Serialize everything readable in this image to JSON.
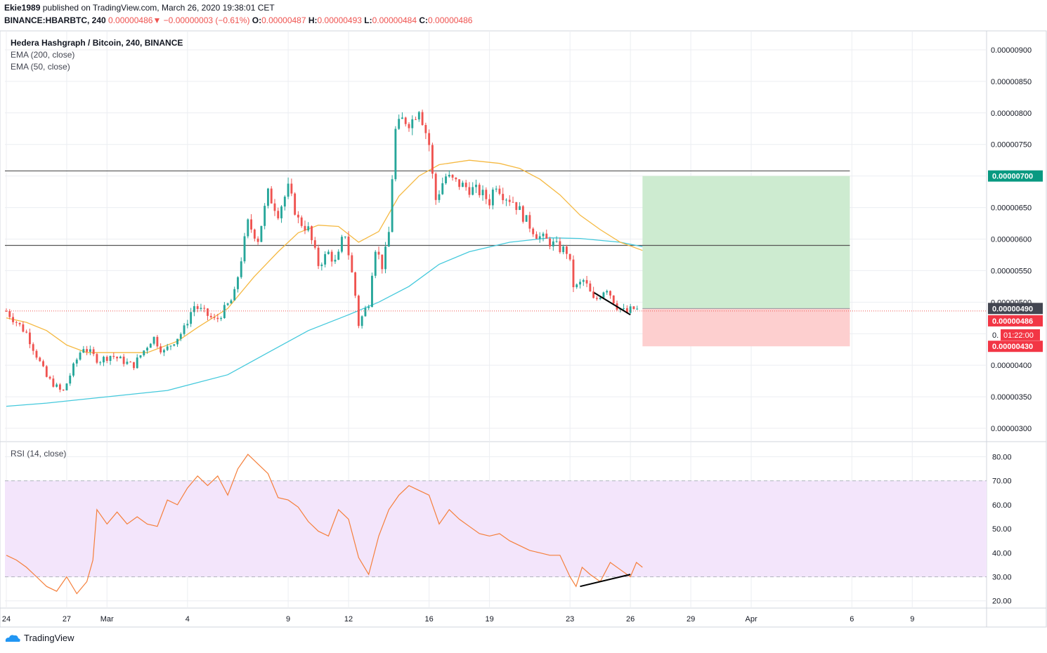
{
  "header": {
    "publisher": "Ekie1989",
    "published_text": "published on TradingView.com, March 26, 2020 19:38:01 CET",
    "symbol": "BINANCE:HBARBTC, 240",
    "last": "0.00000486",
    "change_arrow": "▼",
    "change": "−0.00000003 (−0.61%)",
    "o_label": "O:",
    "o_value": "0.00000487",
    "h_label": "H:",
    "h_value": "0.00000493",
    "l_label": "L:",
    "l_value": "0.00000484",
    "c_label": "C:",
    "c_value": "0.00000486"
  },
  "legend": {
    "title": "Hedera Hashgraph / Bitcoin, 240, BINANCE",
    "ema200": "EMA (200, close)",
    "ema50": "EMA (50, close)",
    "rsi": "RSI (14, close)"
  },
  "footer": {
    "brand": "TradingView"
  },
  "colors": {
    "up": "#26a69a",
    "down": "#ef5350",
    "ema50": "#f5b942",
    "ema200": "#44c9dc",
    "rsi_line": "#f57f3b",
    "rsi_band": "#f3e5fb",
    "profit_zone": "#cdebd0",
    "loss_zone": "#fdcfcf",
    "grid": "#eceef2",
    "resistance": "#555555"
  },
  "chart_data": [
    {
      "type": "candlestick",
      "title": "Hedera Hashgraph / Bitcoin, 240, BINANCE",
      "y_range": [
        2.8e-06,
        9.3e-06
      ],
      "y_ticks": [
        "0.00000300",
        "0.00000350",
        "0.00000400",
        "0.00000450",
        "0.00000500",
        "0.00000550",
        "0.00000600",
        "0.00000650",
        "0.00000700",
        "0.00000750",
        "0.00000800",
        "0.00000850",
        "0.00000900"
      ],
      "x_ticks": [
        {
          "label": "24",
          "day": 0
        },
        {
          "label": "27",
          "day": 3
        },
        {
          "label": "Mar",
          "day": 5
        },
        {
          "label": "4",
          "day": 9
        },
        {
          "label": "9",
          "day": 14
        },
        {
          "label": "12",
          "day": 17
        },
        {
          "label": "16",
          "day": 21
        },
        {
          "label": "19",
          "day": 24
        },
        {
          "label": "23",
          "day": 28
        },
        {
          "label": "26",
          "day": 31
        },
        {
          "label": "29",
          "day": 34
        },
        {
          "label": "Apr",
          "day": 37
        },
        {
          "label": "6",
          "day": 42
        },
        {
          "label": "9",
          "day": 45
        }
      ],
      "candle_points": [
        [
          0,
          4.86e-06
        ],
        [
          1,
          4.51e-06
        ],
        [
          2,
          3.81e-06
        ],
        [
          2.8,
          3.56e-06
        ],
        [
          3.3,
          3.95e-06
        ],
        [
          3.8,
          4.3e-06
        ],
        [
          4.6,
          4.07e-06
        ],
        [
          5.2,
          4.16e-06
        ],
        [
          6.3,
          3.99e-06
        ],
        [
          7.3,
          4.45e-06
        ],
        [
          7.8,
          4.2e-06
        ],
        [
          8.8,
          4.55e-06
        ],
        [
          9.3,
          4.95e-06
        ],
        [
          10.4,
          4.7e-06
        ],
        [
          11.3,
          5.08e-06
        ],
        [
          12.0,
          6.25e-06
        ],
        [
          12.5,
          6e-06
        ],
        [
          13.0,
          6.72e-06
        ],
        [
          13.5,
          6.42e-06
        ],
        [
          14.0,
          6.8e-06
        ],
        [
          14.5,
          6.3e-06
        ],
        [
          15.0,
          6.15e-06
        ],
        [
          15.5,
          5.6e-06
        ],
        [
          16.0,
          5.78e-06
        ],
        [
          16.4,
          5.6e-06
        ],
        [
          16.8,
          6.15e-06
        ],
        [
          17.3,
          5.2e-06
        ],
        [
          17.5,
          4.65e-06
        ],
        [
          18.0,
          5e-06
        ],
        [
          18.3,
          5.9e-06
        ],
        [
          18.7,
          5.55e-06
        ],
        [
          19.0,
          6.1e-06
        ],
        [
          19.3,
          7.7e-06
        ],
        [
          19.7,
          7.9e-06
        ],
        [
          20.1,
          7.85e-06
        ],
        [
          20.5,
          8.1e-06
        ],
        [
          21.0,
          7.5e-06
        ],
        [
          21.3,
          6.6e-06
        ],
        [
          21.8,
          7e-06
        ],
        [
          22.3,
          6.9e-06
        ],
        [
          23.0,
          6.8e-06
        ],
        [
          23.5,
          6.75e-06
        ],
        [
          24.0,
          6.6e-06
        ],
        [
          24.3,
          6.9e-06
        ],
        [
          24.7,
          6.7e-06
        ],
        [
          25.2,
          6.6e-06
        ],
        [
          25.8,
          6.3e-06
        ],
        [
          26.4,
          6.05e-06
        ],
        [
          27.0,
          5.95e-06
        ],
        [
          27.5,
          5.85e-06
        ],
        [
          27.9,
          5.8e-06
        ],
        [
          28.2,
          5.2e-06
        ],
        [
          28.7,
          5.35e-06
        ],
        [
          29.2,
          5e-06
        ],
        [
          29.8,
          5.25e-06
        ],
        [
          30.3,
          4.95e-06
        ],
        [
          30.8,
          4.82e-06
        ],
        [
          31.1,
          4.9e-06
        ],
        [
          31.4,
          4.87e-06
        ]
      ],
      "ema200": [
        [
          0,
          3.35e-06
        ],
        [
          2,
          3.4e-06
        ],
        [
          5,
          3.5e-06
        ],
        [
          8,
          3.6e-06
        ],
        [
          11,
          3.85e-06
        ],
        [
          13,
          4.2e-06
        ],
        [
          15,
          4.55e-06
        ],
        [
          17,
          4.8e-06
        ],
        [
          18.5,
          5e-06
        ],
        [
          20,
          5.25e-06
        ],
        [
          21.5,
          5.6e-06
        ],
        [
          23,
          5.8e-06
        ],
        [
          25,
          5.95e-06
        ],
        [
          27,
          6.02e-06
        ],
        [
          28.5,
          6.01e-06
        ],
        [
          30.5,
          5.95e-06
        ],
        [
          31.6,
          5.88e-06
        ]
      ],
      "ema50": [
        [
          0,
          4.75e-06
        ],
        [
          1,
          4.68e-06
        ],
        [
          2,
          4.55e-06
        ],
        [
          3,
          4.32e-06
        ],
        [
          4,
          4.2e-06
        ],
        [
          5.5,
          4.2e-06
        ],
        [
          7,
          4.2e-06
        ],
        [
          8.5,
          4.38e-06
        ],
        [
          9.5,
          4.6e-06
        ],
        [
          11,
          4.9e-06
        ],
        [
          12.3,
          5.4e-06
        ],
        [
          13.5,
          5.8e-06
        ],
        [
          14.5,
          6.1e-06
        ],
        [
          15.5,
          6.22e-06
        ],
        [
          16.5,
          6.2e-06
        ],
        [
          17.5,
          5.95e-06
        ],
        [
          18.5,
          6.12e-06
        ],
        [
          19.5,
          6.68e-06
        ],
        [
          20.5,
          7e-06
        ],
        [
          21.5,
          7.18e-06
        ],
        [
          23,
          7.25e-06
        ],
        [
          24.5,
          7.2e-06
        ],
        [
          25.5,
          7.12e-06
        ],
        [
          26.5,
          6.95e-06
        ],
        [
          27.5,
          6.7e-06
        ],
        [
          28.5,
          6.38e-06
        ],
        [
          29.5,
          6.15e-06
        ],
        [
          30.5,
          5.95e-06
        ],
        [
          31.6,
          5.82e-06
        ]
      ],
      "resistance_levels": [
        7.08e-06,
        5.9e-06
      ],
      "current_price": 4.86e-06,
      "position": {
        "entry": 4.9e-06,
        "target": 7e-06,
        "stop": 4.3e-06,
        "start_day": 31.6,
        "end_day": 41.9,
        "entry_label": "0.00000490",
        "target_label": "0.00000700",
        "stop_label": "0.00000430",
        "price_label": "0.00000486",
        "countdown_label": "01:22:00",
        "countdown_prefix": "0."
      },
      "trendline": [
        [
          29.2,
          5.15e-06
        ],
        [
          31.0,
          4.8e-06
        ]
      ]
    },
    {
      "type": "line",
      "title": "RSI (14, close)",
      "y_range": [
        17,
        86
      ],
      "y_ticks": [
        "20.00",
        "30.00",
        "40.00",
        "50.00",
        "60.00",
        "70.00",
        "80.00"
      ],
      "band": [
        30,
        70
      ],
      "values": [
        [
          0,
          39
        ],
        [
          0.5,
          37
        ],
        [
          1,
          34
        ],
        [
          1.5,
          30
        ],
        [
          2,
          26
        ],
        [
          2.5,
          24
        ],
        [
          3,
          30
        ],
        [
          3.5,
          23
        ],
        [
          4,
          28
        ],
        [
          4.3,
          37
        ],
        [
          4.5,
          58
        ],
        [
          5,
          52
        ],
        [
          5.5,
          57
        ],
        [
          6,
          52
        ],
        [
          6.5,
          55
        ],
        [
          7,
          52
        ],
        [
          7.5,
          51
        ],
        [
          8,
          62
        ],
        [
          8.5,
          60
        ],
        [
          9,
          67
        ],
        [
          9.5,
          72
        ],
        [
          10,
          68
        ],
        [
          10.5,
          72
        ],
        [
          11,
          64
        ],
        [
          11.5,
          75
        ],
        [
          12,
          81
        ],
        [
          12.5,
          77
        ],
        [
          13,
          73
        ],
        [
          13.5,
          63
        ],
        [
          14,
          62
        ],
        [
          14.5,
          59
        ],
        [
          15,
          53
        ],
        [
          15.5,
          49
        ],
        [
          16,
          47
        ],
        [
          16.5,
          58
        ],
        [
          17,
          54
        ],
        [
          17.5,
          38
        ],
        [
          18,
          31
        ],
        [
          18.5,
          47
        ],
        [
          19,
          58
        ],
        [
          19.5,
          64
        ],
        [
          20,
          68
        ],
        [
          20.5,
          66
        ],
        [
          21,
          64
        ],
        [
          21.5,
          52
        ],
        [
          22,
          58
        ],
        [
          22.5,
          54
        ],
        [
          23,
          51
        ],
        [
          23.5,
          48
        ],
        [
          24,
          47
        ],
        [
          24.5,
          48
        ],
        [
          25,
          45
        ],
        [
          25.5,
          43
        ],
        [
          26,
          41
        ],
        [
          26.5,
          40
        ],
        [
          27,
          39
        ],
        [
          27.5,
          39
        ],
        [
          28,
          30
        ],
        [
          28.3,
          26
        ],
        [
          28.6,
          34
        ],
        [
          29,
          31
        ],
        [
          29.5,
          28
        ],
        [
          30,
          36
        ],
        [
          30.5,
          33
        ],
        [
          31,
          30
        ],
        [
          31.3,
          36
        ],
        [
          31.6,
          34
        ]
      ],
      "trendline": [
        [
          28.5,
          26
        ],
        [
          31.0,
          31
        ]
      ]
    }
  ]
}
